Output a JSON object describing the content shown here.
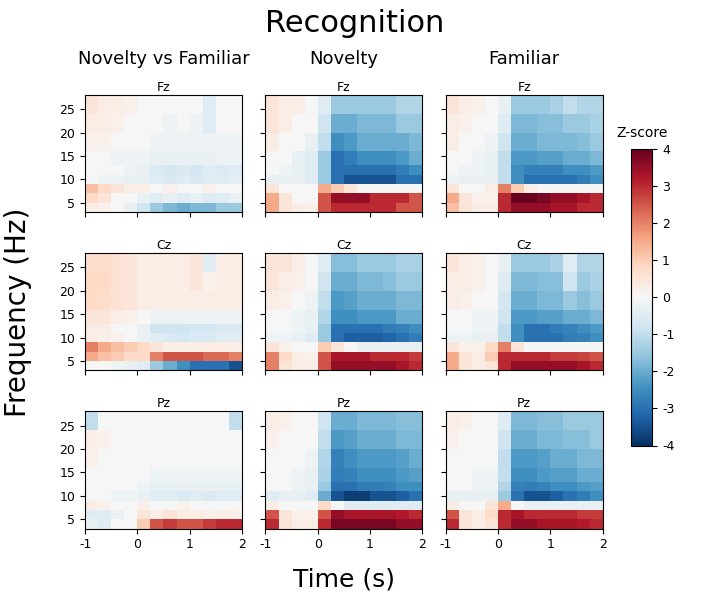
{
  "title": "Recognition",
  "columns": [
    "Novelty vs Familiar",
    "Novelty",
    "Familiar"
  ],
  "x_label": "Time (s)",
  "y_label": "Frequency (Hz)",
  "x_edges": [
    -1,
    -0.75,
    -0.5,
    -0.25,
    0,
    0.25,
    0.5,
    0.75,
    1,
    1.25,
    1.5,
    1.75,
    2
  ],
  "y_edges": [
    3,
    5,
    7,
    9,
    11,
    13,
    16,
    20,
    24,
    28
  ],
  "xlim": [
    -1,
    2
  ],
  "ylim": [
    3,
    28
  ],
  "xticks": [
    -1,
    0,
    1,
    2
  ],
  "yticks": [
    5,
    10,
    15,
    20,
    25
  ],
  "colorbar": {
    "label": "Z-score",
    "range": [
      -4,
      4
    ],
    "ticks": [
      -4,
      -3,
      -2,
      -1,
      0,
      1,
      2,
      3,
      4
    ]
  },
  "chart_data": [
    {
      "type": "heatmap",
      "title": "Fz",
      "cells": [
        [
          0.3,
          0.2,
          0,
          -0.3,
          -0.8,
          -1.5,
          -1.8,
          -2,
          -1.8,
          -1.8,
          -1.5,
          -1.5
        ],
        [
          0.8,
          0.5,
          0,
          0,
          -0.3,
          -0.5,
          -0.3,
          -0.5,
          -0.3,
          -0.5,
          -0.5,
          -0.3
        ],
        [
          1.2,
          0.8,
          0.5,
          0.3,
          0.3,
          0,
          0.2,
          0,
          0,
          0.2,
          0,
          0
        ],
        [
          0,
          -0.2,
          -0.2,
          -0.3,
          -0.3,
          -0.5,
          -0.6,
          -0.5,
          -0.6,
          -0.5,
          -0.5,
          -0.4
        ],
        [
          0,
          0,
          0,
          -0.2,
          -0.3,
          -0.6,
          -0.7,
          -0.6,
          -0.7,
          -0.5,
          -0.6,
          -0.5
        ],
        [
          0,
          0,
          -0.2,
          -0.2,
          -0.2,
          -0.3,
          -0.3,
          -0.3,
          -0.3,
          -0.3,
          -0.2,
          -0.2
        ],
        [
          0.2,
          0.2,
          0,
          0,
          0,
          -0.2,
          -0.2,
          -0.2,
          -0.2,
          -0.2,
          -0.2,
          -0.2
        ],
        [
          0.3,
          0.3,
          0.2,
          0,
          0,
          0,
          -0.2,
          0,
          -0.2,
          -0.5,
          0,
          0
        ],
        [
          0.5,
          0.3,
          0.3,
          0.2,
          0,
          0,
          0,
          0,
          0,
          -0.5,
          0,
          0
        ]
      ]
    },
    {
      "type": "heatmap",
      "title": "Fz",
      "cells": [
        [
          1.5,
          0.5,
          0.3,
          0.2,
          2.5,
          3,
          3,
          3,
          3,
          3,
          2.5,
          2.5
        ],
        [
          1.5,
          0.5,
          0,
          0,
          2.5,
          3.5,
          3.5,
          3.5,
          3,
          3,
          3,
          2.5
        ],
        [
          0.5,
          0,
          0,
          0,
          1.5,
          1,
          0.5,
          0,
          0,
          0,
          0,
          0
        ],
        [
          -0.3,
          -0.3,
          -0.3,
          -0.5,
          -1.5,
          -3,
          -3.5,
          -3.5,
          -3.5,
          -3.5,
          -3,
          -3
        ],
        [
          0,
          -0.2,
          -0.3,
          -0.5,
          -1.5,
          -3,
          -3,
          -3,
          -3,
          -3,
          -2.8,
          -2.5
        ],
        [
          0,
          0,
          -0.3,
          -0.5,
          -1.5,
          -3,
          -2.8,
          -2.5,
          -2.5,
          -2.5,
          -2.3,
          -2
        ],
        [
          0.3,
          0,
          0,
          -0.3,
          -1,
          -2.5,
          -2.3,
          -2,
          -2,
          -2,
          -2,
          -1.8
        ],
        [
          0.5,
          0.3,
          0,
          0,
          -0.8,
          -2,
          -2,
          -1.8,
          -1.8,
          -1.8,
          -1.5,
          -1.5
        ],
        [
          0.5,
          0.3,
          0.3,
          0,
          -0.5,
          -1.5,
          -1.5,
          -1.5,
          -1.5,
          -1.5,
          -1.2,
          -1.2
        ]
      ]
    },
    {
      "type": "heatmap",
      "title": "Fz",
      "cells": [
        [
          1.2,
          0.5,
          0.3,
          0.3,
          3,
          3.5,
          3.5,
          3.5,
          3.3,
          3.3,
          3,
          3
        ],
        [
          1.5,
          0.5,
          0.2,
          0.2,
          3,
          4,
          4,
          3.8,
          3.5,
          3.5,
          3.3,
          3
        ],
        [
          0.5,
          0,
          0,
          0.3,
          2,
          1,
          0.3,
          0,
          0,
          0,
          0,
          0
        ],
        [
          -0.2,
          -0.3,
          -0.3,
          -0.3,
          -1,
          -2.5,
          -3,
          -3,
          -3,
          -3,
          -2.8,
          -2.5
        ],
        [
          0,
          -0.2,
          -0.2,
          -0.3,
          -1,
          -2.5,
          -2.7,
          -2.7,
          -2.7,
          -2.5,
          -2.5,
          -2.3
        ],
        [
          0,
          0,
          -0.2,
          -0.3,
          -1,
          -2.3,
          -2.3,
          -2.2,
          -2.2,
          -2,
          -2,
          -1.8
        ],
        [
          0.3,
          0,
          0,
          -0.2,
          -0.8,
          -2,
          -2,
          -1.8,
          -1.8,
          -1.8,
          -1.7,
          -1.5
        ],
        [
          0.3,
          0.2,
          0,
          0,
          -0.5,
          -1.8,
          -1.8,
          -1.7,
          -1.7,
          -1.5,
          -1.5,
          -1.3
        ],
        [
          0.5,
          0.3,
          0.2,
          0,
          -0.3,
          -1.5,
          -1.5,
          -1.5,
          -1.3,
          -1,
          -1.2,
          -1.2
        ]
      ]
    },
    {
      "type": "heatmap",
      "title": "Cz",
      "cells": [
        [
          0,
          0,
          -0.2,
          -0.3,
          -0.5,
          -1.5,
          -2,
          -2.5,
          -3,
          -3,
          -3,
          -3.5
        ],
        [
          1.5,
          1.2,
          1,
          0.8,
          0.8,
          2,
          2.5,
          2.5,
          2.5,
          2.3,
          2.3,
          2
        ],
        [
          2,
          1.5,
          1.2,
          1,
          0.8,
          0.5,
          0.3,
          0.3,
          0.3,
          0.3,
          0.3,
          0.3
        ],
        [
          0.3,
          0.2,
          0.2,
          0,
          -0.3,
          -0.5,
          -0.6,
          -0.7,
          -0.6,
          -0.6,
          -0.5,
          -0.5
        ],
        [
          0.3,
          0.3,
          0,
          0,
          -0.3,
          -0.8,
          -0.8,
          -0.8,
          -0.7,
          -0.7,
          -0.6,
          -0.6
        ],
        [
          0.5,
          0.5,
          0.3,
          0.2,
          0,
          -0.2,
          -0.2,
          -0.2,
          -0.2,
          -0.2,
          -0.2,
          -0.2
        ],
        [
          0.8,
          0.7,
          0.6,
          0.5,
          0.3,
          0.3,
          0.3,
          0.3,
          0.3,
          0.3,
          0.3,
          0.3
        ],
        [
          0.8,
          0.8,
          0.6,
          0.5,
          0.3,
          0.3,
          0.3,
          0.3,
          0.5,
          0.2,
          0.3,
          0.3
        ],
        [
          0.7,
          0.7,
          0.6,
          0.5,
          0.3,
          0.3,
          0.3,
          0.3,
          0.5,
          -0.5,
          0.3,
          0.3
        ]
      ]
    },
    {
      "type": "heatmap",
      "title": "Cz",
      "cells": [
        [
          2,
          0.5,
          0.3,
          0.3,
          2.5,
          3.5,
          3.5,
          3.5,
          3.5,
          3.5,
          3.3,
          3
        ],
        [
          2,
          0.8,
          0.3,
          0.2,
          2.5,
          3.3,
          3.3,
          3.3,
          3,
          3,
          3,
          2.8
        ],
        [
          0.5,
          0.2,
          0,
          0,
          1,
          0.5,
          0,
          -0.3,
          -0.3,
          -0.3,
          -0.3,
          -0.3
        ],
        [
          -0.2,
          -0.2,
          -0.3,
          -0.5,
          -1.5,
          -3,
          -3.3,
          -3.3,
          -3.3,
          -3.2,
          -3,
          -2.8
        ],
        [
          0,
          0,
          -0.2,
          -0.3,
          -1.5,
          -3,
          -3,
          -3,
          -3,
          -2.8,
          -2.7,
          -2.5
        ],
        [
          0,
          0,
          -0.2,
          -0.3,
          -1.2,
          -2.5,
          -2.5,
          -2.3,
          -2.3,
          -2.3,
          -2,
          -2
        ],
        [
          0.3,
          0.2,
          0,
          -0.2,
          -1,
          -2.3,
          -2.2,
          -2,
          -2,
          -2,
          -1.8,
          -1.8
        ],
        [
          0.5,
          0.3,
          0.2,
          0,
          -0.8,
          -2,
          -2,
          -1.8,
          -1.8,
          -1.7,
          -1.5,
          -1.5
        ],
        [
          0.5,
          0.5,
          0.3,
          0,
          -0.5,
          -1.7,
          -1.7,
          -1.5,
          -1.5,
          -1.5,
          -1.3,
          -1.3
        ]
      ]
    },
    {
      "type": "heatmap",
      "title": "Cz",
      "cells": [
        [
          1.5,
          0.5,
          0.3,
          0.5,
          3,
          3.5,
          3.5,
          3.5,
          3.5,
          3.5,
          3.3,
          3
        ],
        [
          1.5,
          0.5,
          0.3,
          1,
          3,
          3,
          3,
          3,
          2.8,
          2.8,
          2.7,
          2.5
        ],
        [
          0.5,
          0.2,
          0.2,
          0.8,
          2,
          0.5,
          0,
          0,
          0,
          0,
          0,
          0
        ],
        [
          -0.2,
          -0.2,
          -0.3,
          -0.3,
          -1,
          -2.5,
          -3,
          -3,
          -3,
          -2.8,
          -2.7,
          -2.5
        ],
        [
          0,
          0,
          -0.2,
          -0.2,
          -1,
          -2.5,
          -3,
          -3,
          -2.8,
          -2.7,
          -2.5,
          -2.3
        ],
        [
          0,
          0,
          -0.2,
          -0.2,
          -0.8,
          -2.3,
          -2.3,
          -2.2,
          -2.2,
          -2,
          -2,
          -1.8
        ],
        [
          0.3,
          0.2,
          0,
          0,
          -0.7,
          -2,
          -2,
          -1.8,
          -1.8,
          -1.5,
          -1.7,
          -1.5
        ],
        [
          0.3,
          0.3,
          0.2,
          0,
          -0.5,
          -1.8,
          -1.8,
          -1.7,
          -1.7,
          -0.8,
          -1.5,
          -1.3
        ],
        [
          0.5,
          0.3,
          0.2,
          0,
          -0.3,
          -1.5,
          -1.5,
          -1.5,
          -1.3,
          -0.5,
          -1.2,
          -1.2
        ]
      ]
    },
    {
      "type": "heatmap",
      "title": "Pz",
      "cells": [
        [
          -0.3,
          -0.5,
          0,
          0,
          1,
          2.5,
          2.8,
          2.5,
          2.5,
          2.8,
          3,
          3
        ],
        [
          -0.5,
          -0.5,
          -0.3,
          0,
          0.5,
          0.3,
          0.5,
          0.3,
          0.3,
          0.2,
          0.3,
          0.2
        ],
        [
          0.3,
          0.2,
          0,
          0,
          0.2,
          0,
          0,
          0.2,
          0,
          0,
          0,
          0
        ],
        [
          0,
          0,
          -0.2,
          -0.2,
          -0.3,
          -0.5,
          -0.5,
          -0.6,
          -0.5,
          -0.6,
          -0.5,
          -0.5
        ],
        [
          0,
          0,
          0,
          0,
          -0.2,
          -0.3,
          -0.3,
          -0.3,
          -0.3,
          -0.3,
          -0.3,
          -0.3
        ],
        [
          0,
          0,
          0,
          0,
          0,
          -0.2,
          -0.2,
          -0.2,
          -0.2,
          -0.2,
          -0.2,
          -0.2
        ],
        [
          0.2,
          0,
          0,
          0,
          0,
          0,
          0,
          0,
          0,
          0,
          0,
          0
        ],
        [
          0.3,
          0.2,
          0,
          0,
          0,
          0,
          0,
          0,
          0,
          0,
          0,
          0
        ],
        [
          -1,
          0,
          0,
          0,
          0,
          0,
          0,
          0,
          0,
          0,
          0,
          -1
        ]
      ]
    },
    {
      "type": "heatmap",
      "title": "Pz",
      "cells": [
        [
          3,
          0.5,
          0.3,
          0.3,
          3,
          3.8,
          3.8,
          3.8,
          3.8,
          3.8,
          3.5,
          3.5
        ],
        [
          2.5,
          0.5,
          0.2,
          0.2,
          2.5,
          3.5,
          3.3,
          3.3,
          3.3,
          3.3,
          3.2,
          3
        ],
        [
          0.3,
          0,
          0,
          0,
          0.8,
          0,
          -0.5,
          -0.5,
          -0.5,
          -0.5,
          -0.5,
          -0.5
        ],
        [
          -0.5,
          -0.3,
          -0.3,
          -0.5,
          -2,
          -3.5,
          -3.8,
          -3.8,
          -3.5,
          -3.5,
          -3.3,
          -3
        ],
        [
          0,
          0,
          -0.2,
          -0.3,
          -1.5,
          -3,
          -3,
          -2.8,
          -2.8,
          -2.7,
          -2.5,
          -2.5
        ],
        [
          0,
          0,
          -0.2,
          -0.3,
          -1.3,
          -2.8,
          -2.7,
          -2.5,
          -2.5,
          -2.5,
          -2.3,
          -2.2
        ],
        [
          0,
          0,
          0,
          -0.2,
          -1.2,
          -2.7,
          -2.5,
          -2.3,
          -2.3,
          -2.3,
          -2.2,
          -2
        ],
        [
          0.2,
          0,
          0,
          0,
          -1,
          -2.3,
          -2.2,
          -2,
          -2,
          -2,
          -1.8,
          -1.8
        ],
        [
          0.3,
          0.2,
          0,
          0,
          -0.8,
          -2,
          -2,
          -1.8,
          -1.8,
          -1.8,
          -1.7,
          -1.7
        ]
      ]
    },
    {
      "type": "heatmap",
      "title": "Pz",
      "cells": [
        [
          3,
          0.5,
          0.3,
          0.5,
          3,
          3.5,
          3.5,
          3.3,
          3.3,
          3.3,
          3.2,
          3
        ],
        [
          2.5,
          0.5,
          0.3,
          0.8,
          3,
          3.3,
          3,
          3,
          3,
          3,
          2.8,
          2.8
        ],
        [
          0.3,
          0,
          0,
          0.5,
          1.5,
          0,
          -0.3,
          -0.3,
          -0.3,
          -0.3,
          -0.3,
          -0.3
        ],
        [
          -0.3,
          -0.3,
          -0.3,
          -0.3,
          -1.5,
          -3,
          -3.5,
          -3.5,
          -3.3,
          -3,
          -2.8,
          -2.5
        ],
        [
          0,
          0,
          -0.2,
          -0.2,
          -1.2,
          -2.7,
          -2.8,
          -2.7,
          -2.5,
          -2.5,
          -2.3,
          -2.2
        ],
        [
          0,
          0,
          -0.2,
          -0.2,
          -1,
          -2.5,
          -2.5,
          -2.3,
          -2.2,
          -2.2,
          -2,
          -2
        ],
        [
          0,
          0,
          0,
          0,
          -1,
          -2.3,
          -2.3,
          -2.2,
          -2,
          -2,
          -1.8,
          -1.8
        ],
        [
          0.2,
          0,
          0,
          0,
          -0.8,
          -2,
          -2,
          -1.8,
          -1.8,
          -1.7,
          -1.7,
          -1.5
        ],
        [
          0.3,
          0.2,
          0,
          0,
          -0.5,
          -1.8,
          -1.8,
          -1.7,
          -1.7,
          -1.5,
          -1.5,
          -1.5
        ]
      ]
    }
  ]
}
